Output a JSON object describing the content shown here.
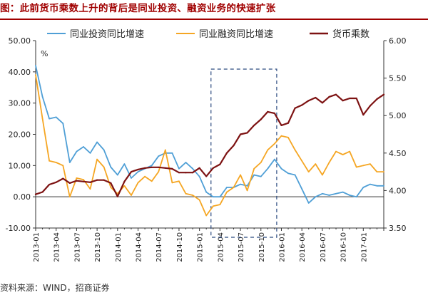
{
  "figure": {
    "title": "图：此前货币乘数上升的背后是同业投资、融资业务的快速扩张",
    "source": "资料来源：WIND，招商证券"
  },
  "colors": {
    "title": "#a00000",
    "series": [
      "#4f9fd6",
      "#f5a623",
      "#7d1212"
    ],
    "highlight_box": "#2b4a7f"
  },
  "chart_data": {
    "type": "line",
    "x": [
      "2013-01",
      "2013-02",
      "2013-03",
      "2013-04",
      "2013-05",
      "2013-06",
      "2013-07",
      "2013-08",
      "2013-09",
      "2013-10",
      "2013-11",
      "2013-12",
      "2014-01",
      "2014-02",
      "2014-03",
      "2014-04",
      "2014-05",
      "2014-06",
      "2014-07",
      "2014-08",
      "2014-09",
      "2014-10",
      "2014-11",
      "2014-12",
      "2015-01",
      "2015-02",
      "2015-03",
      "2015-04",
      "2015-05",
      "2015-06",
      "2015-07",
      "2015-08",
      "2015-09",
      "2015-10",
      "2015-11",
      "2015-12",
      "2016-01",
      "2016-02",
      "2016-03",
      "2016-04",
      "2016-05",
      "2016-06",
      "2016-07",
      "2016-08",
      "2016-09",
      "2016-10",
      "2016-11",
      "2016-12",
      "2017-01",
      "2017-02",
      "2017-03",
      "2017-04"
    ],
    "x_tick_labels": [
      "2013-01",
      "2013-04",
      "2013-07",
      "2013-10",
      "2014-01",
      "2014-04",
      "2014-07",
      "2014-10",
      "2015-01",
      "2015-04",
      "2015-07",
      "2015-10",
      "2016-01",
      "2016-04",
      "2016-07",
      "2016-10",
      "2017-01"
    ],
    "x_tick_every": 3,
    "left_axis": {
      "range": [
        -10,
        50
      ],
      "ticks": [
        -10,
        0,
        10,
        20,
        30,
        40,
        50
      ],
      "tick_labels": [
        "-10.00",
        "0.00",
        "10.00",
        "20.00",
        "30.00",
        "40.00",
        "50.00"
      ],
      "unit_label": "%"
    },
    "right_axis": {
      "range": [
        3.5,
        6.0
      ],
      "ticks": [
        3.5,
        4.0,
        4.5,
        5.0,
        5.5,
        6.0
      ],
      "tick_labels": [
        "3.50",
        "4.00",
        "4.50",
        "5.00",
        "5.50",
        "6.00"
      ]
    },
    "series": [
      {
        "name": "同业投资同比增速",
        "axis": "left",
        "values": [
          42,
          32,
          25,
          25.5,
          23.5,
          11,
          14.5,
          16,
          14,
          17.5,
          15,
          9.5,
          7,
          10.5,
          6,
          8,
          9,
          10,
          13,
          14,
          14,
          9,
          11,
          9,
          6.5,
          1.5,
          0,
          0,
          3,
          3,
          4,
          3.5,
          7,
          6.5,
          9,
          12,
          9,
          7.5,
          7,
          2.5,
          -2,
          0,
          1,
          0.5,
          1,
          1.5,
          0.5,
          0,
          3,
          4,
          3.5,
          3.5
        ]
      },
      {
        "name": "同业融资同比增速",
        "axis": "left",
        "values": [
          39,
          25,
          11.5,
          11,
          10,
          0,
          6,
          5.5,
          2.5,
          12,
          9.5,
          3,
          1,
          3.5,
          0.5,
          4.5,
          6.5,
          5,
          8,
          15,
          4.5,
          5,
          1,
          0.5,
          -1,
          -6,
          -3,
          -2.5,
          1.5,
          3,
          7,
          2,
          9,
          11,
          15,
          17,
          19.5,
          19,
          15,
          11.5,
          8,
          10.5,
          7,
          11,
          14.5,
          13.5,
          14.5,
          9.5,
          10,
          10.5,
          8,
          8
        ]
      },
      {
        "name": "货币乘数",
        "axis": "right",
        "values": [
          3.95,
          3.98,
          4.08,
          4.11,
          4.16,
          4.1,
          4.13,
          4.12,
          4.11,
          4.14,
          4.14,
          4.1,
          3.92,
          4.12,
          4.25,
          4.28,
          4.3,
          4.31,
          4.31,
          4.3,
          4.29,
          4.24,
          4.24,
          4.24,
          4.3,
          4.19,
          4.3,
          4.35,
          4.5,
          4.6,
          4.75,
          4.77,
          4.87,
          4.95,
          5.05,
          5.03,
          4.87,
          4.9,
          5.1,
          5.14,
          5.2,
          5.24,
          5.17,
          5.25,
          5.28,
          5.2,
          5.23,
          5.23,
          5.01,
          5.13,
          5.22,
          5.28
        ]
      }
    ],
    "highlight_box": {
      "x_start": "2015-03",
      "x_end": "2015-12"
    },
    "grid": false,
    "legend": "top"
  }
}
